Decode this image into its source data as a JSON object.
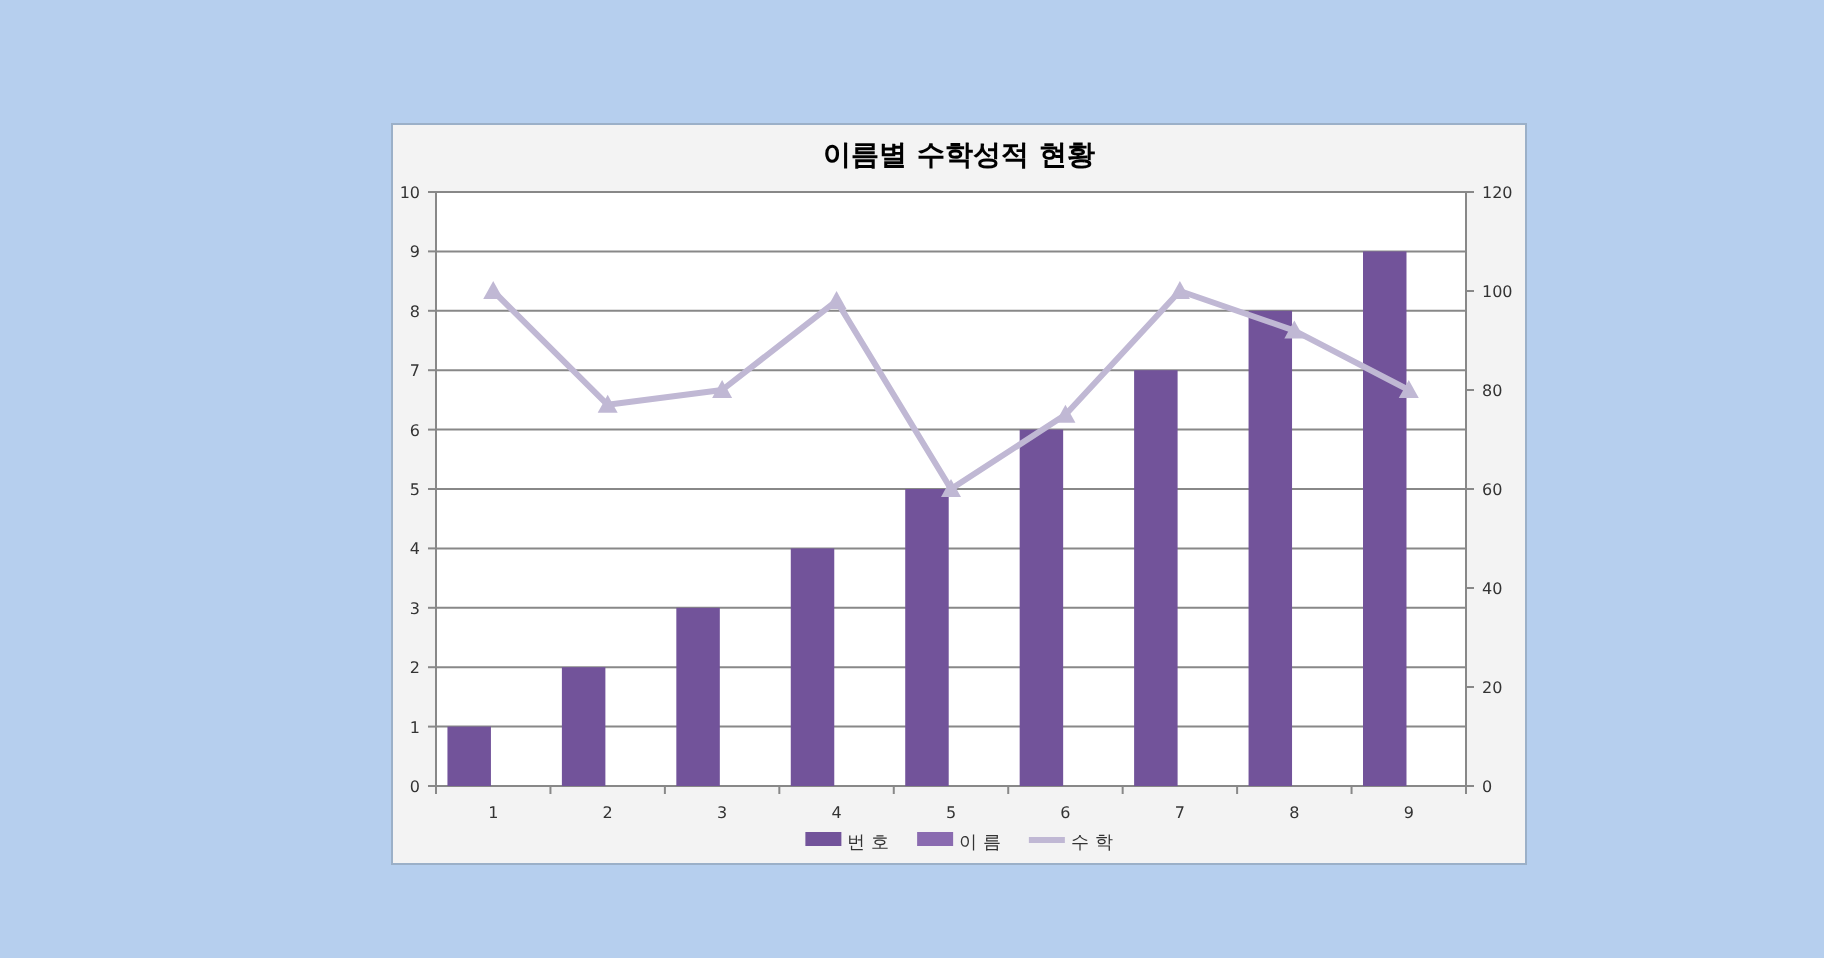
{
  "chart_data": {
    "type": "bar",
    "title": "이름별 수학성적 현황",
    "categories": [
      "1",
      "2",
      "3",
      "4",
      "5",
      "6",
      "7",
      "8",
      "9"
    ],
    "series": [
      {
        "name": "번 호",
        "color": "#72539a",
        "values": [
          1,
          2,
          3,
          4,
          5,
          6,
          7,
          8,
          9
        ]
      },
      {
        "name": "이 름",
        "color": "#8a6bb0",
        "values": [
          null,
          null,
          null,
          null,
          null,
          null,
          null,
          null,
          null
        ]
      },
      {
        "name": "수 학",
        "type": "line",
        "axis": "y2",
        "color": "#c0b8d4",
        "marker": "triangle",
        "values": [
          100,
          77,
          80,
          98,
          60,
          75,
          100,
          92,
          80
        ]
      }
    ],
    "ylim": [
      0,
      10
    ],
    "yticks": [
      0,
      1,
      2,
      3,
      4,
      5,
      6,
      7,
      8,
      9,
      10
    ],
    "y2lim": [
      0,
      120
    ],
    "y2ticks": [
      0,
      20,
      40,
      60,
      80,
      100,
      120
    ],
    "grid": "y",
    "legend": "bottom"
  }
}
